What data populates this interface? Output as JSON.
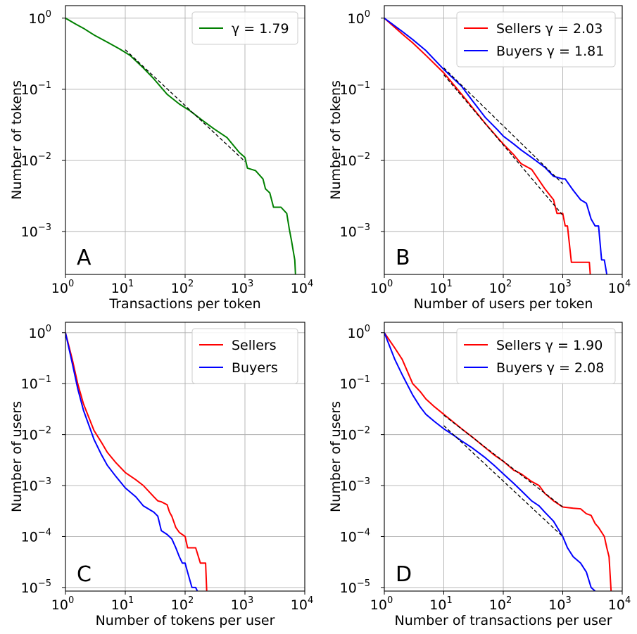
{
  "colors": {
    "green": "#008000",
    "red": "#ff0000",
    "blue": "#0000ff",
    "fit": "#000000",
    "grid": "#b0b0b0"
  },
  "chart_data": [
    {
      "type": "line",
      "panel_label": "A",
      "xlabel": "Transactions per token",
      "ylabel": "Number of tokens",
      "xscale": "log",
      "yscale": "log",
      "xlim": [
        1,
        10000
      ],
      "ylim": [
        0.00025,
        1.5
      ],
      "xticks": [
        1,
        10,
        100,
        1000,
        10000
      ],
      "xtick_labels": [
        "10^0",
        "10^1",
        "10^2",
        "10^3",
        "10^4"
      ],
      "yticks": [
        0.001,
        0.01,
        0.1,
        1
      ],
      "ytick_labels": [
        "10^-3",
        "10^-2",
        "10^-1",
        "10^0"
      ],
      "grid": true,
      "legend": "top-right",
      "series": [
        {
          "name": "γ = 1.79",
          "legend_label": "γ = 1.79",
          "color_key": "green",
          "step": false,
          "x": [
            1,
            1.5,
            2,
            3,
            5,
            8,
            12,
            20,
            30,
            50,
            80,
            120,
            200,
            300,
            500,
            800,
            1000,
            1100,
            1500,
            2000,
            2200,
            2600,
            3000,
            4000,
            5000,
            5500,
            6000,
            6500,
            6800,
            7000
          ],
          "y": [
            1,
            0.82,
            0.72,
            0.58,
            0.46,
            0.37,
            0.3,
            0.2,
            0.14,
            0.085,
            0.062,
            0.05,
            0.036,
            0.028,
            0.021,
            0.013,
            0.011,
            0.0078,
            0.0072,
            0.0055,
            0.004,
            0.0035,
            0.0022,
            0.0022,
            0.0018,
            0.0011,
            0.00075,
            0.0005,
            0.0004,
            0.00025
          ]
        },
        {
          "name": "fit",
          "legend_label": "",
          "color_key": "fit",
          "dashed": true,
          "x": [
            10,
            1000
          ],
          "y": [
            0.36,
            0.0097
          ]
        }
      ]
    },
    {
      "type": "line",
      "panel_label": "B",
      "xlabel": "Number of users per token",
      "ylabel": "Number of tokens",
      "xscale": "log",
      "yscale": "log",
      "xlim": [
        1,
        10000
      ],
      "ylim": [
        0.00025,
        1.5
      ],
      "xticks": [
        1,
        10,
        100,
        1000,
        10000
      ],
      "xtick_labels": [
        "10^0",
        "10^1",
        "10^2",
        "10^3",
        "10^4"
      ],
      "yticks": [
        0.001,
        0.01,
        0.1,
        1
      ],
      "ytick_labels": [
        "10^-3",
        "10^-2",
        "10^-1",
        "10^0"
      ],
      "grid": true,
      "legend": "top-right",
      "series": [
        {
          "name": "Sellers γ = 2.03",
          "legend_label": "Sellers γ = 2.03",
          "color_key": "red",
          "x": [
            1,
            2,
            3,
            5,
            10,
            20,
            30,
            50,
            80,
            100,
            150,
            200,
            300,
            500,
            700,
            800,
            1000,
            1100,
            1200,
            1400,
            2000,
            2800,
            2900
          ],
          "y": [
            1,
            0.6,
            0.45,
            0.3,
            0.17,
            0.085,
            0.056,
            0.033,
            0.021,
            0.017,
            0.012,
            0.009,
            0.0075,
            0.004,
            0.0028,
            0.0018,
            0.0018,
            0.0012,
            0.0012,
            0.00037,
            0.00037,
            0.00037,
            0.00025
          ]
        },
        {
          "name": "Buyers γ = 1.81",
          "legend_label": "Buyers γ = 1.81",
          "color_key": "blue",
          "x": [
            1,
            2,
            3,
            5,
            10,
            20,
            30,
            50,
            80,
            100,
            150,
            200,
            300,
            500,
            700,
            1000,
            1100,
            1300,
            1500,
            2000,
            2500,
            3000,
            3500,
            4000,
            4500,
            5000,
            5500
          ],
          "y": [
            1,
            0.65,
            0.5,
            0.35,
            0.19,
            0.11,
            0.07,
            0.04,
            0.027,
            0.022,
            0.017,
            0.014,
            0.011,
            0.008,
            0.006,
            0.0055,
            0.0055,
            0.0045,
            0.0038,
            0.0028,
            0.0025,
            0.0015,
            0.0012,
            0.0012,
            0.0004,
            0.0004,
            0.00025
          ]
        },
        {
          "name": "fit",
          "legend_label": "",
          "color_key": "fit",
          "dashed": true,
          "x": [
            10,
            1000
          ],
          "y": [
            0.2,
            0.0047
          ]
        },
        {
          "name": "fit",
          "legend_label": "",
          "color_key": "fit",
          "dashed": true,
          "x": [
            10,
            1000
          ],
          "y": [
            0.16,
            0.0017
          ]
        }
      ]
    },
    {
      "type": "line",
      "panel_label": "C",
      "xlabel": "Number of tokens per user",
      "ylabel": "Number of users",
      "xscale": "log",
      "yscale": "log",
      "xlim": [
        1,
        10000
      ],
      "ylim": [
        8.5e-06,
        1.6
      ],
      "xticks": [
        1,
        10,
        100,
        1000,
        10000
      ],
      "xtick_labels": [
        "10^0",
        "10^1",
        "10^2",
        "10^3",
        "10^4"
      ],
      "yticks": [
        1e-05,
        0.0001,
        0.001,
        0.01,
        0.1,
        1
      ],
      "ytick_labels": [
        "10^-5",
        "10^-4",
        "10^-3",
        "10^-2",
        "10^-1",
        "10^0"
      ],
      "grid": true,
      "legend": "top-right",
      "series": [
        {
          "name": "Sellers",
          "legend_label": "Sellers",
          "color_key": "red",
          "x": [
            1,
            1.3,
            1.6,
            2,
            3,
            4,
            5,
            7,
            10,
            15,
            20,
            30,
            35,
            40,
            50,
            55,
            60,
            70,
            80,
            100,
            110,
            130,
            150,
            180,
            200,
            220,
            230
          ],
          "y": [
            1,
            0.3,
            0.1,
            0.04,
            0.012,
            0.007,
            0.0045,
            0.0028,
            0.0018,
            0.0013,
            0.001,
            0.0006,
            0.0005,
            0.00048,
            0.00042,
            0.0003,
            0.00025,
            0.00015,
            0.00012,
            0.0001,
            6e-05,
            6e-05,
            6e-05,
            3e-05,
            3e-05,
            3e-05,
            8.5e-06
          ]
        },
        {
          "name": "Buyers",
          "legend_label": "Buyers",
          "color_key": "blue",
          "x": [
            1,
            1.3,
            1.6,
            2,
            3,
            4,
            5,
            7,
            10,
            15,
            20,
            30,
            35,
            40,
            50,
            60,
            70,
            80,
            90,
            100,
            110,
            130,
            150,
            160
          ],
          "y": [
            1,
            0.25,
            0.08,
            0.03,
            0.008,
            0.004,
            0.0025,
            0.0015,
            0.0009,
            0.0006,
            0.0004,
            0.0003,
            0.00025,
            0.00013,
            0.00011,
            9e-05,
            6e-05,
            4e-05,
            3e-05,
            3e-05,
            2e-05,
            1e-05,
            1e-05,
            8.5e-06
          ]
        }
      ]
    },
    {
      "type": "line",
      "panel_label": "D",
      "xlabel": "Number of transactions per user",
      "ylabel": "Number of users",
      "xscale": "log",
      "yscale": "log",
      "xlim": [
        1,
        10000
      ],
      "ylim": [
        8.5e-06,
        1.6
      ],
      "xticks": [
        1,
        10,
        100,
        1000,
        10000
      ],
      "xtick_labels": [
        "10^0",
        "10^1",
        "10^2",
        "10^3",
        "10^4"
      ],
      "yticks": [
        1e-05,
        0.0001,
        0.001,
        0.01,
        0.1,
        1
      ],
      "ytick_labels": [
        "10^-5",
        "10^-4",
        "10^-3",
        "10^-2",
        "10^-1",
        "10^0"
      ],
      "grid": true,
      "legend": "top-right",
      "series": [
        {
          "name": "Sellers γ = 1.90",
          "legend_label": "Sellers γ = 1.90",
          "color_key": "red",
          "x": [
            1,
            1.5,
            2,
            3,
            4,
            5,
            7,
            10,
            15,
            20,
            30,
            50,
            70,
            100,
            150,
            200,
            300,
            400,
            500,
            700,
            1000,
            1500,
            2000,
            2500,
            3000,
            3500,
            4000,
            5000,
            5500,
            6000,
            6500
          ],
          "y": [
            1,
            0.5,
            0.3,
            0.1,
            0.07,
            0.05,
            0.035,
            0.025,
            0.017,
            0.013,
            0.009,
            0.0055,
            0.004,
            0.003,
            0.002,
            0.0017,
            0.0012,
            0.001,
            0.0007,
            0.0005,
            0.00038,
            0.00036,
            0.00035,
            0.00028,
            0.00026,
            0.00018,
            0.00015,
            0.0001,
            6e-05,
            4e-05,
            8.5e-06
          ]
        },
        {
          "name": "Buyers γ = 2.08",
          "legend_label": "Buyers γ = 2.08",
          "color_key": "blue",
          "x": [
            1,
            1.5,
            2,
            3,
            4,
            5,
            7,
            10,
            15,
            20,
            30,
            50,
            70,
            100,
            150,
            200,
            300,
            400,
            500,
            700,
            1000,
            1200,
            1500,
            2000,
            2500,
            3000,
            3500
          ],
          "y": [
            1,
            0.3,
            0.15,
            0.06,
            0.035,
            0.025,
            0.018,
            0.013,
            0.0095,
            0.0075,
            0.0055,
            0.0035,
            0.0025,
            0.0017,
            0.0011,
            0.0008,
            0.0005,
            0.0004,
            0.0003,
            0.0002,
            0.0001,
            6e-05,
            4e-05,
            3e-05,
            2e-05,
            1e-05,
            8.5e-06
          ]
        },
        {
          "name": "fit",
          "legend_label": "",
          "color_key": "fit",
          "dashed": true,
          "x": [
            10,
            1000
          ],
          "y": [
            0.024,
            0.00038
          ]
        },
        {
          "name": "fit",
          "legend_label": "",
          "color_key": "fit",
          "dashed": true,
          "x": [
            10,
            1000
          ],
          "y": [
            0.015,
            0.0001
          ]
        }
      ]
    }
  ]
}
